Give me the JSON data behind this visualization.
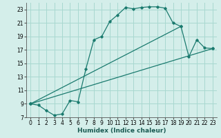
{
  "xlabel": "Humidex (Indice chaleur)",
  "bg_color": "#d4eeea",
  "grid_color": "#a8d8d0",
  "line_color": "#1a7a6e",
  "xlim": [
    -0.5,
    23.5
  ],
  "ylim": [
    7,
    24
  ],
  "xticks": [
    0,
    1,
    2,
    3,
    4,
    5,
    6,
    7,
    8,
    9,
    10,
    11,
    12,
    13,
    14,
    15,
    16,
    17,
    18,
    19,
    20,
    21,
    22,
    23
  ],
  "yticks": [
    7,
    9,
    11,
    13,
    15,
    17,
    19,
    21,
    23
  ],
  "line1_x": [
    0,
    1,
    2,
    3,
    4,
    5,
    6,
    7,
    8,
    9,
    10,
    11,
    12,
    13,
    14,
    15,
    16,
    17,
    18,
    19,
    20,
    21,
    22,
    23
  ],
  "line1_y": [
    9.0,
    8.8,
    8.0,
    7.3,
    7.5,
    9.5,
    9.3,
    14.2,
    18.5,
    19.0,
    21.2,
    22.2,
    23.3,
    23.1,
    23.3,
    23.4,
    23.4,
    23.2,
    21.0,
    20.5,
    16.0,
    18.5,
    17.3,
    17.2
  ],
  "line2_x": [
    0,
    23
  ],
  "line2_y": [
    9.0,
    17.2
  ],
  "line3_x": [
    0,
    19
  ],
  "line3_y": [
    9.0,
    20.5
  ],
  "font_size_axis": 6.5,
  "font_size_ticks": 5.5
}
